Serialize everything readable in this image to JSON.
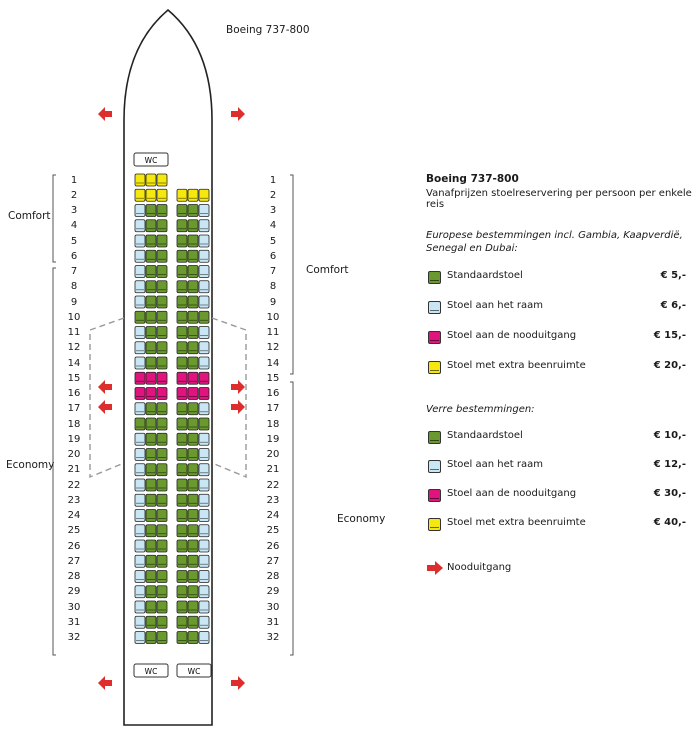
{
  "aircraft_label": "Boeing 737-800",
  "wc_label": "WC",
  "colors": {
    "standard": "#6a9a2e",
    "window": "#c8e6f4",
    "exit": "#e0137f",
    "legroom": "#f4e80f",
    "exit_arrow": "#dd2d2d",
    "outline": "#222222",
    "divider": "#9a9a9a"
  },
  "sections": [
    {
      "label": "Comfort",
      "side": "left",
      "rows": "1-6"
    },
    {
      "label": "Economy",
      "side": "left",
      "rows": "7-32"
    },
    {
      "label": "Comfort",
      "side": "right",
      "rows": "1-14"
    },
    {
      "label": "Economy",
      "side": "right",
      "rows": "15-32"
    }
  ],
  "rows": [
    {
      "n": "1",
      "seats": [
        "L",
        "L",
        "L",
        "",
        "",
        ""
      ]
    },
    {
      "n": "2",
      "seats": [
        "L",
        "L",
        "L",
        "L",
        "L",
        "L"
      ]
    },
    {
      "n": "3",
      "seats": [
        "W",
        "S",
        "S",
        "S",
        "S",
        "W"
      ]
    },
    {
      "n": "4",
      "seats": [
        "W",
        "S",
        "S",
        "S",
        "S",
        "W"
      ]
    },
    {
      "n": "5",
      "seats": [
        "W",
        "S",
        "S",
        "S",
        "S",
        "W"
      ]
    },
    {
      "n": "6",
      "seats": [
        "W",
        "S",
        "S",
        "S",
        "S",
        "W"
      ]
    },
    {
      "n": "7",
      "seats": [
        "W",
        "S",
        "S",
        "S",
        "S",
        "W"
      ]
    },
    {
      "n": "8",
      "seats": [
        "W",
        "S",
        "S",
        "S",
        "S",
        "W"
      ]
    },
    {
      "n": "9",
      "seats": [
        "W",
        "S",
        "S",
        "S",
        "S",
        "W"
      ]
    },
    {
      "n": "10",
      "seats": [
        "S",
        "S",
        "S",
        "S",
        "S",
        "S"
      ]
    },
    {
      "n": "11",
      "seats": [
        "W",
        "S",
        "S",
        "S",
        "S",
        "W"
      ]
    },
    {
      "n": "12",
      "seats": [
        "W",
        "S",
        "S",
        "S",
        "S",
        "W"
      ]
    },
    {
      "n": "14",
      "seats": [
        "W",
        "S",
        "S",
        "S",
        "S",
        "W"
      ]
    },
    {
      "n": "15",
      "seats": [
        "E",
        "E",
        "E",
        "E",
        "E",
        "E"
      ]
    },
    {
      "n": "16",
      "seats": [
        "E",
        "E",
        "E",
        "E",
        "E",
        "E"
      ]
    },
    {
      "n": "17",
      "seats": [
        "W",
        "S",
        "S",
        "S",
        "S",
        "W"
      ]
    },
    {
      "n": "18",
      "seats": [
        "S",
        "S",
        "S",
        "S",
        "S",
        "S"
      ]
    },
    {
      "n": "19",
      "seats": [
        "W",
        "S",
        "S",
        "S",
        "S",
        "W"
      ]
    },
    {
      "n": "20",
      "seats": [
        "W",
        "S",
        "S",
        "S",
        "S",
        "W"
      ]
    },
    {
      "n": "21",
      "seats": [
        "W",
        "S",
        "S",
        "S",
        "S",
        "W"
      ]
    },
    {
      "n": "22",
      "seats": [
        "W",
        "S",
        "S",
        "S",
        "S",
        "W"
      ]
    },
    {
      "n": "23",
      "seats": [
        "W",
        "S",
        "S",
        "S",
        "S",
        "W"
      ]
    },
    {
      "n": "24",
      "seats": [
        "W",
        "S",
        "S",
        "S",
        "S",
        "W"
      ]
    },
    {
      "n": "25",
      "seats": [
        "W",
        "S",
        "S",
        "S",
        "S",
        "W"
      ]
    },
    {
      "n": "26",
      "seats": [
        "W",
        "S",
        "S",
        "S",
        "S",
        "W"
      ]
    },
    {
      "n": "27",
      "seats": [
        "W",
        "S",
        "S",
        "S",
        "S",
        "W"
      ]
    },
    {
      "n": "28",
      "seats": [
        "W",
        "S",
        "S",
        "S",
        "S",
        "W"
      ]
    },
    {
      "n": "29",
      "seats": [
        "W",
        "S",
        "S",
        "S",
        "S",
        "W"
      ]
    },
    {
      "n": "30",
      "seats": [
        "W",
        "S",
        "S",
        "S",
        "S",
        "W"
      ]
    },
    {
      "n": "31",
      "seats": [
        "W",
        "S",
        "S",
        "S",
        "S",
        "W"
      ]
    },
    {
      "n": "32",
      "seats": [
        "W",
        "S",
        "S",
        "S",
        "S",
        "W"
      ]
    }
  ],
  "legend": {
    "title": "Boeing 737-800",
    "subtitle": "Vanafprijzen stoelreservering per persoon per enkele reis",
    "groups": [
      {
        "heading": "Europese bestemmingen incl. Gambia, Kaapverdië, Senegal en Dubai:",
        "items": [
          {
            "type": "standard",
            "label": "Standaardstoel",
            "price": "€ 5,-"
          },
          {
            "type": "window",
            "label": "Stoel aan het raam",
            "price": "€ 6,-"
          },
          {
            "type": "exit",
            "label": "Stoel aan de nooduitgang",
            "price": "€ 15,-"
          },
          {
            "type": "legroom",
            "label": "Stoel met extra beenruimte",
            "price": "€ 20,-"
          }
        ]
      },
      {
        "heading": "Verre bestemmingen:",
        "items": [
          {
            "type": "standard",
            "label": "Standaardstoel",
            "price": "€ 10,-"
          },
          {
            "type": "window",
            "label": "Stoel aan het raam",
            "price": "€ 12,-"
          },
          {
            "type": "exit",
            "label": "Stoel aan de nooduitgang",
            "price": "€ 30,-"
          },
          {
            "type": "legroom",
            "label": "Stoel met extra beenruimte",
            "price": "€ 40,-"
          }
        ]
      }
    ],
    "exit_label": "Nooduitgang"
  }
}
